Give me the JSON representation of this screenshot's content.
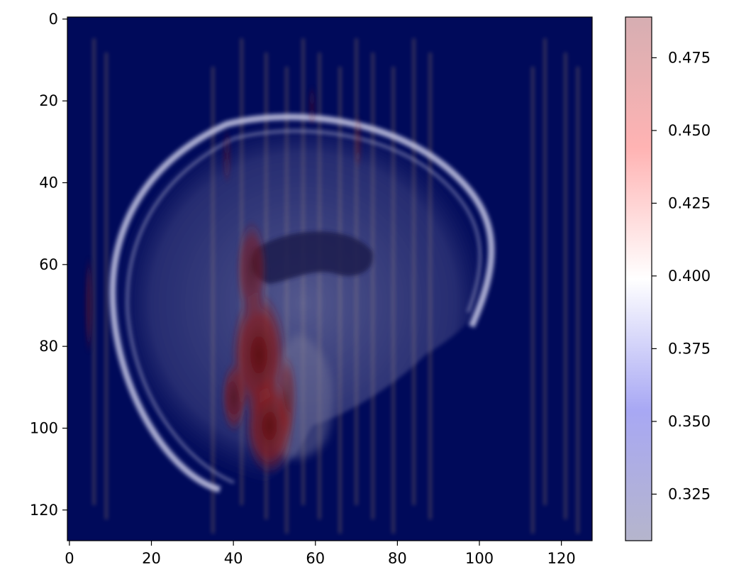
{
  "chart_data": {
    "type": "heatmap",
    "title": "",
    "xlabel": "",
    "ylabel": "",
    "image_extent": {
      "x": [
        -0.5,
        127.5
      ],
      "y": [
        127.5,
        -0.5
      ]
    },
    "y_axis_inverted": true,
    "x_ticks": [
      0,
      20,
      40,
      60,
      80,
      100,
      120
    ],
    "y_ticks": [
      0,
      20,
      40,
      60,
      80,
      100,
      120
    ],
    "x_tick_labels": [
      "0",
      "20",
      "40",
      "60",
      "80",
      "100",
      "120"
    ],
    "y_tick_labels": [
      "0",
      "20",
      "40",
      "60",
      "80",
      "100",
      "120"
    ],
    "colorbar": {
      "colormap": "seismic",
      "alpha": 0.3,
      "range": [
        0.309,
        0.489
      ],
      "ticks": [
        0.325,
        0.35,
        0.375,
        0.4,
        0.425,
        0.45,
        0.475
      ],
      "tick_labels": [
        "0.325",
        "0.350",
        "0.375",
        "0.400",
        "0.425",
        "0.450",
        "0.475"
      ]
    },
    "background_color": "#000a5a",
    "content": "sagittal MRI brain slice with translucent attention overlay; strongest values (dark red) concentrated around x≈42–55, y≈55–115"
  }
}
